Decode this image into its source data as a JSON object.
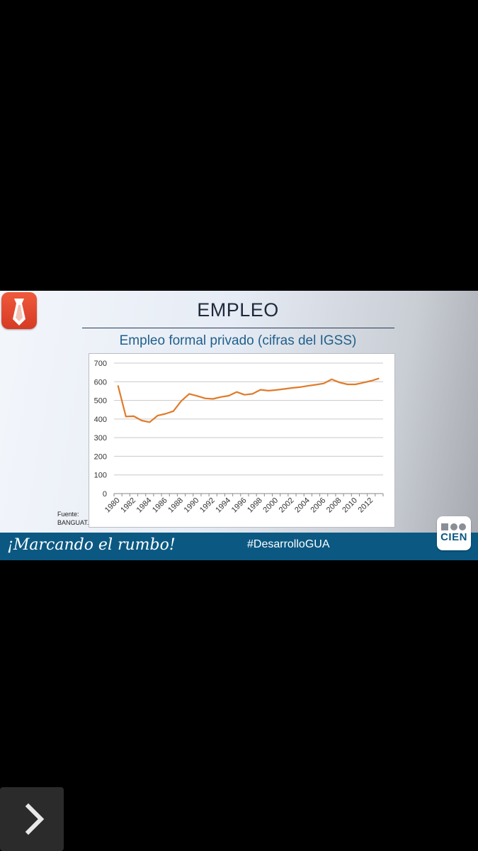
{
  "slide": {
    "title": "EMPLEO",
    "source_line1": "Fuente:",
    "source_line2": "BANGUAT.",
    "slogan": "¡Marcando el rumbo!",
    "hashtag": "#DesarrolloGUA",
    "logo_text": "CIEN",
    "tie_logo_icon": "tie-icon",
    "accent_color": "#0b5983"
  },
  "navigation": {
    "next_icon": "chevron-right-icon"
  },
  "chart_data": {
    "type": "line",
    "title": "Empleo formal privado (cifras del IGSS)",
    "xlabel": "",
    "ylabel": "",
    "x": [
      1980,
      1981,
      1982,
      1983,
      1984,
      1985,
      1986,
      1987,
      1988,
      1989,
      1990,
      1991,
      1992,
      1993,
      1994,
      1995,
      1996,
      1997,
      1998,
      1999,
      2000,
      2001,
      2002,
      2003,
      2004,
      2005,
      2006,
      2007,
      2008,
      2009,
      2010,
      2011,
      2012,
      2013
    ],
    "series": [
      {
        "color": "#e07b2a",
        "values": [
          580,
          413,
          415,
          392,
          383,
          418,
          428,
          442,
          497,
          535,
          524,
          511,
          508,
          518,
          525,
          545,
          530,
          535,
          557,
          552,
          556,
          561,
          567,
          571,
          578,
          584,
          591,
          613,
          596,
          586,
          586,
          595,
          605,
          618
        ]
      }
    ],
    "x_tick_labels": [
      "1980",
      "1982",
      "1984",
      "1986",
      "1988",
      "1990",
      "1992",
      "1994",
      "1996",
      "1998",
      "2000",
      "2002",
      "2004",
      "2006",
      "2008",
      "2010",
      "2012"
    ],
    "y_tick_labels": [
      "0",
      "100",
      "200",
      "300",
      "400",
      "500",
      "600",
      "700"
    ],
    "ylim": [
      0,
      700
    ],
    "grid": "horizontal",
    "legend": "none"
  }
}
